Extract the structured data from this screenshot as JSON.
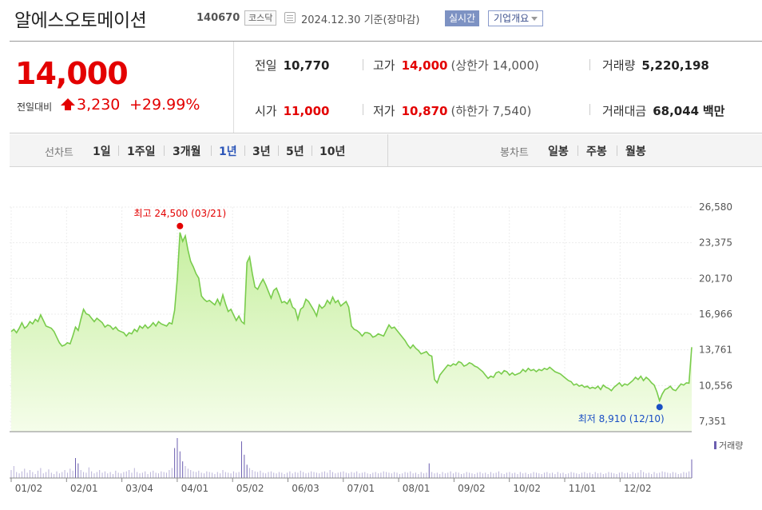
{
  "header": {
    "name": "알에스오토메이션",
    "code": "140670",
    "market": "코스닥",
    "date": "2024.12.30 기준(장마감)",
    "realtime": "실시간",
    "corp_info": "기업개요"
  },
  "quote": {
    "price": "14,000",
    "change_label": "전일대비",
    "change": "3,230",
    "change_pct": "+29.99%",
    "prev_close_label": "전일",
    "prev_close": "10,770",
    "high_label": "고가",
    "high": "14,000",
    "upper_limit": "(상한가 14,000)",
    "volume_label": "거래량",
    "volume": "5,220,198",
    "open_label": "시가",
    "open": "11,000",
    "low_label": "저가",
    "low": "10,870",
    "lower_limit": "(하한가 7,540)",
    "amount_label": "거래대금",
    "amount": "68,044",
    "amount_unit": "백만"
  },
  "tabs": {
    "line_label": "선차트",
    "line_periods": [
      "1일",
      "1주일",
      "3개월",
      "1년",
      "3년",
      "5년",
      "10년"
    ],
    "active_period": "1년",
    "candle_label": "봉차트",
    "candle_periods": [
      "일봉",
      "주봉",
      "월봉"
    ]
  },
  "colors": {
    "up": "#e30000",
    "down": "#1a4fc4",
    "line": "#79cc4c",
    "fill_top": "#c6ef9f",
    "fill_bottom": "#f5fdea",
    "volume": "#6c5fb0"
  },
  "chart_data": {
    "type": "area",
    "y_ticks": [
      "26,580",
      "23,375",
      "20,170",
      "16,966",
      "13,761",
      "10,556",
      "7,351"
    ],
    "ylim": [
      7351,
      26580
    ],
    "x_ticks": [
      "01/02",
      "02/01",
      "03/04",
      "04/01",
      "05/02",
      "06/03",
      "07/01",
      "08/01",
      "09/02",
      "10/02",
      "11/01",
      "12/02"
    ],
    "max_annotation": "최고 24,500 (03/21)",
    "min_annotation": "최저 8,910 (12/10)",
    "volume_legend": "거래량",
    "values": [
      15400,
      15600,
      15300,
      15700,
      16200,
      15700,
      15900,
      16300,
      16100,
      16500,
      16300,
      16900,
      16400,
      15900,
      15800,
      15700,
      15400,
      14900,
      14400,
      14100,
      14200,
      14400,
      14300,
      15000,
      15800,
      15500,
      16500,
      17400,
      17000,
      16900,
      16600,
      16300,
      16600,
      16400,
      16200,
      15800,
      16000,
      15900,
      15600,
      15800,
      15500,
      15400,
      15300,
      15000,
      15300,
      15200,
      15600,
      15400,
      15900,
      15700,
      16000,
      15700,
      15900,
      16200,
      15900,
      16300,
      16100,
      16000,
      15900,
      16200,
      16100,
      17300,
      20200,
      24300,
      23500,
      24000,
      22700,
      21700,
      21200,
      20600,
      20200,
      18600,
      18300,
      18100,
      18200,
      18000,
      17800,
      18300,
      17800,
      18700,
      17900,
      17200,
      17400,
      16900,
      16400,
      16800,
      16300,
      16100,
      21600,
      22100,
      20600,
      19400,
      19200,
      19700,
      20100,
      19600,
      19000,
      18400,
      19100,
      19300,
      18700,
      18000,
      18100,
      17900,
      18300,
      17600,
      17400,
      16500,
      17400,
      17600,
      18300,
      18100,
      17700,
      17300,
      16800,
      17800,
      17500,
      17700,
      18200,
      17900,
      18500,
      18000,
      18200,
      17700,
      17900,
      18100,
      17600,
      15900,
      15600,
      15500,
      15300,
      15000,
      15300,
      15300,
      15200,
      14900,
      15000,
      15200,
      15100,
      15000,
      15500,
      16000,
      15700,
      15800,
      15500,
      15200,
      14900,
      14600,
      14200,
      13900,
      14200,
      13900,
      13700,
      13400,
      13500,
      13600,
      13300,
      13200,
      11100,
      10800,
      11500,
      11800,
      12100,
      12400,
      12300,
      12500,
      12400,
      12700,
      12600,
      12300,
      12400,
      12600,
      12500,
      12300,
      12200,
      12000,
      11800,
      11500,
      11200,
      11400,
      11300,
      11700,
      11800,
      11600,
      11900,
      11800,
      11500,
      11700,
      11500,
      11600,
      11700,
      12000,
      11800,
      12100,
      11900,
      12000,
      11800,
      12000,
      11900,
      12100,
      12000,
      12200,
      12000,
      11800,
      11700,
      11600,
      11400,
      11200,
      11000,
      10900,
      10600,
      10700,
      10500,
      10600,
      10400,
      10500,
      10300,
      10400,
      10300,
      10500,
      10200,
      10600,
      10400,
      10300,
      10100,
      10400,
      10600,
      10800,
      10500,
      10700,
      10600,
      10800,
      11000,
      11300,
      11100,
      11400,
      11000,
      11300,
      11100,
      10800,
      10600,
      10000,
      9200,
      9800,
      10200,
      10300,
      10500,
      10200,
      10100,
      10400,
      10700,
      10600,
      10800,
      10770,
      14000
    ],
    "volumes": [
      12,
      18,
      9,
      7,
      10,
      14,
      8,
      12,
      9,
      6,
      11,
      15,
      7,
      9,
      13,
      8,
      6,
      10,
      7,
      9,
      12,
      8,
      14,
      11,
      30,
      22,
      12,
      9,
      8,
      16,
      10,
      7,
      9,
      12,
      8,
      10,
      7,
      9,
      6,
      11,
      8,
      7,
      9,
      10,
      12,
      8,
      15,
      9,
      7,
      8,
      10,
      6,
      9,
      11,
      8,
      7,
      10,
      9,
      8,
      12,
      15,
      45,
      60,
      40,
      25,
      18,
      14,
      12,
      10,
      9,
      11,
      8,
      7,
      10,
      9,
      8,
      6,
      9,
      7,
      12,
      9,
      8,
      7,
      10,
      8,
      9,
      55,
      35,
      20,
      15,
      12,
      10,
      9,
      11,
      8,
      7,
      9,
      10,
      8,
      7,
      9,
      8,
      6,
      8,
      10,
      7,
      9,
      8,
      11,
      9,
      7,
      8,
      10,
      9,
      8,
      7,
      9,
      10,
      8,
      12,
      9,
      7,
      8,
      9,
      10,
      8,
      7,
      9,
      8,
      10,
      7,
      8,
      9,
      7,
      6,
      8,
      9,
      7,
      8,
      10,
      9,
      8,
      7,
      9,
      8,
      6,
      7,
      9,
      8,
      10,
      7,
      8,
      6,
      9,
      7,
      8,
      22,
      9,
      7,
      8,
      6,
      9,
      7,
      8,
      10,
      7,
      9,
      8,
      6,
      7,
      9,
      8,
      7,
      6,
      8,
      9,
      7,
      8,
      6,
      9,
      7,
      8,
      10,
      7,
      6,
      8,
      9,
      7,
      8,
      6,
      9,
      7,
      8,
      6,
      7,
      9,
      8,
      7,
      6,
      8,
      9,
      7,
      8,
      6,
      9,
      7,
      8,
      6,
      7,
      9,
      8,
      7,
      6,
      8,
      9,
      7,
      8,
      6,
      9,
      7,
      8,
      6,
      7,
      9,
      8,
      7,
      6,
      8,
      9,
      7,
      8,
      6,
      9,
      7,
      8,
      12,
      9,
      7,
      8,
      6,
      9,
      7,
      8,
      10,
      9,
      8,
      7,
      9,
      8,
      6,
      7,
      9,
      8,
      10,
      28
    ]
  }
}
